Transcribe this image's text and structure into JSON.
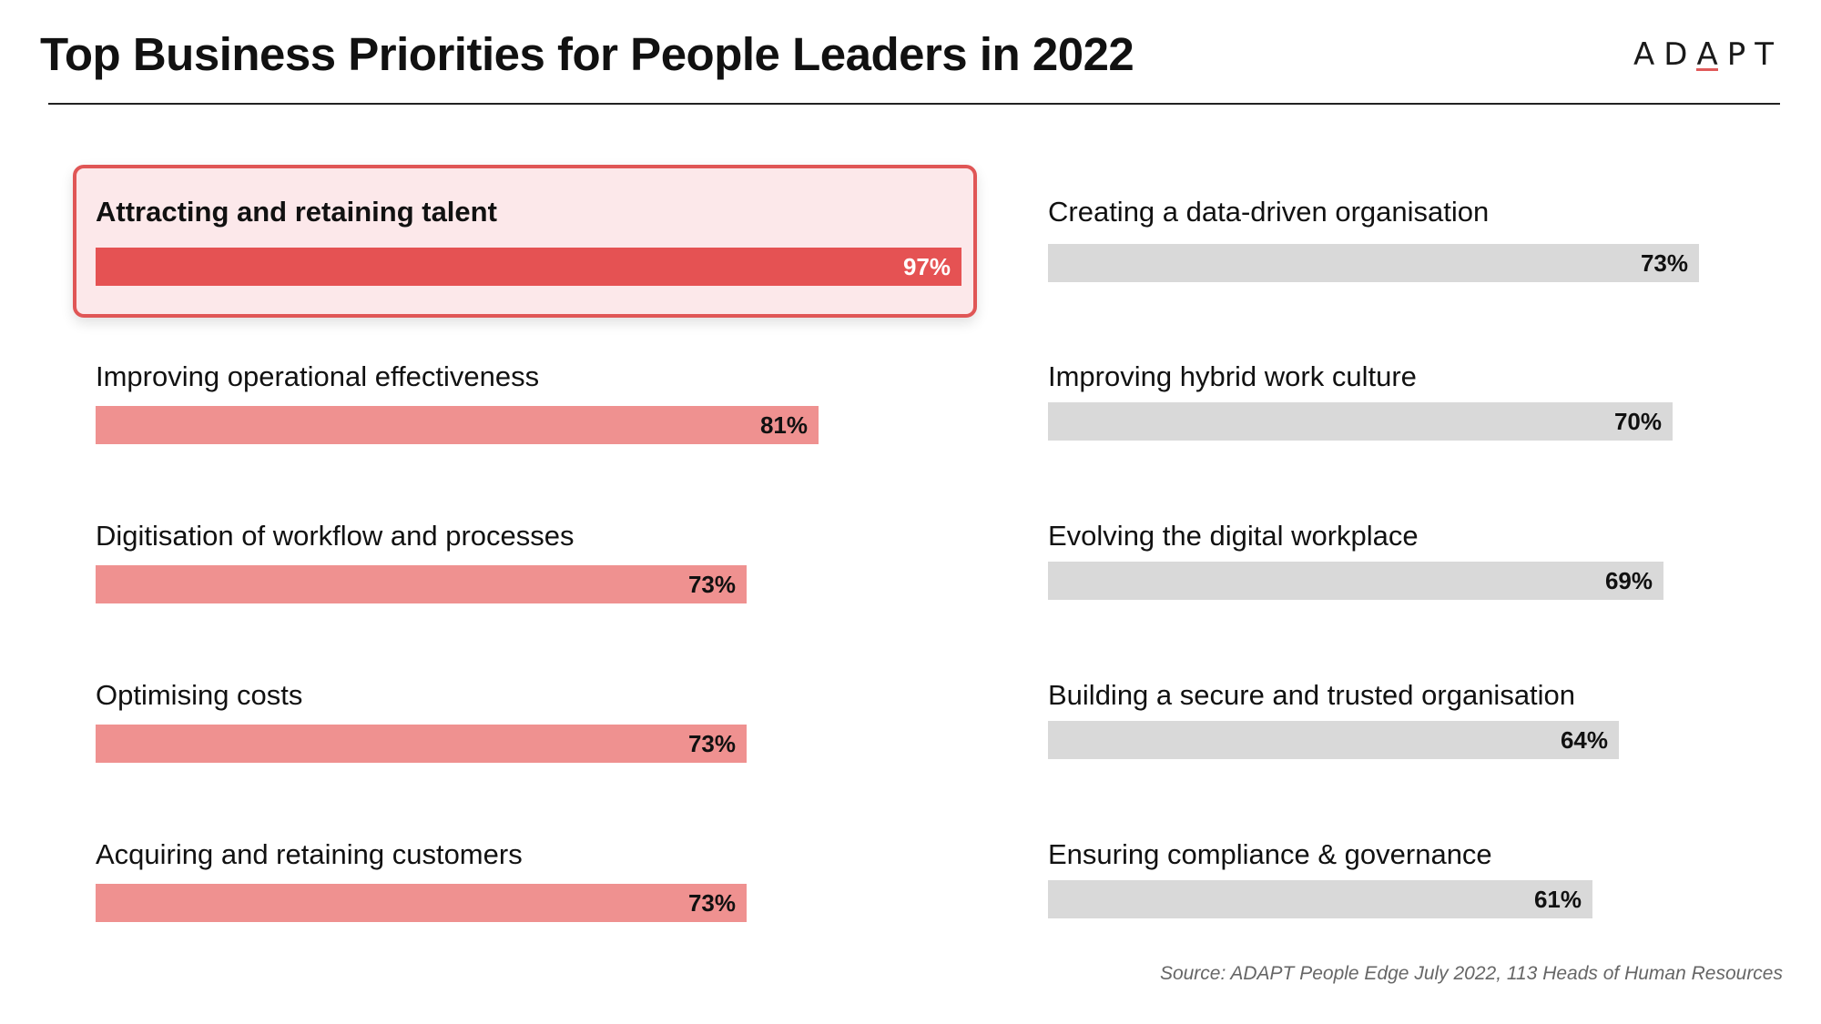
{
  "title": "Top Business Priorities for People Leaders in 2022",
  "logo": {
    "left": "AD",
    "mid": "A",
    "right": "PT"
  },
  "source": "Source: ADAPT People Edge July 2022, 113 Heads of Human Resources",
  "colors": {
    "highlight": "#e55253",
    "left_bars": "#ef9190",
    "right_bars": "#d9d9d9",
    "highlight_bg": "#fce8ea"
  },
  "chart_data": {
    "type": "bar",
    "orientation": "horizontal",
    "title": "Top Business Priorities for People Leaders in 2022",
    "categories": [
      "Attracting and retaining talent",
      "Improving operational effectiveness",
      "Digitisation of workflow and processes",
      "Optimising costs",
      "Acquiring and retaining customers",
      "Creating a data-driven organisation",
      "Improving hybrid work culture",
      "Evolving the digital workplace",
      "Building a secure and trusted organisation",
      "Ensuring compliance & governance"
    ],
    "values": [
      97,
      81,
      73,
      73,
      73,
      73,
      70,
      69,
      64,
      61
    ],
    "value_labels": [
      "97%",
      "81%",
      "73%",
      "73%",
      "73%",
      "73%",
      "70%",
      "69%",
      "64%",
      "61%"
    ],
    "unit": "%",
    "xlim": [
      0,
      100
    ],
    "grid": false,
    "legend": "none",
    "highlighted": "Attracting and retaining talent"
  }
}
